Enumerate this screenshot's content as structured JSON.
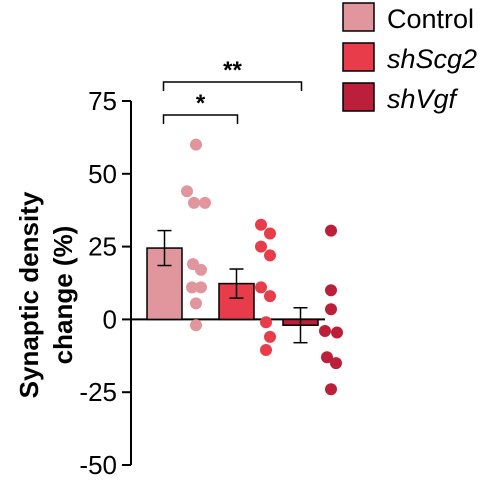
{
  "chart_data": {
    "type": "bar",
    "ylabel_line1": "Synaptic density",
    "ylabel_line2": "change (%)",
    "ylim": [
      -50,
      75
    ],
    "yticks": [
      75,
      50,
      25,
      0,
      -25,
      -50
    ],
    "ytick_labels": [
      "75",
      "50",
      "25",
      "0",
      "-25",
      "-50"
    ],
    "grid": false,
    "legend_position": "top-right",
    "series": [
      {
        "name": "Control",
        "italic": false,
        "mean": 24.5,
        "error": 6,
        "bar_color": "#e0969c",
        "point_color": "#e0969c",
        "points": [
          60,
          44,
          40,
          40,
          19,
          17,
          11,
          11,
          5.5,
          -2
        ]
      },
      {
        "name": "shScg2",
        "italic": true,
        "mean": 12.3,
        "error": 5,
        "bar_color": "#e83c4a",
        "point_color": "#e83c4a",
        "points": [
          32.5,
          29.5,
          25,
          22,
          11,
          8,
          -1,
          -6,
          -10.5
        ]
      },
      {
        "name": "shVgf",
        "italic": true,
        "mean": -2,
        "error": 6,
        "bar_color": "#bb1f39",
        "point_color": "#bb1f39",
        "points": [
          30.5,
          10,
          3.5,
          -4,
          -4.5,
          -13,
          -15,
          -24
        ]
      }
    ],
    "significance": [
      {
        "from": 0,
        "to": 1,
        "label": "*"
      },
      {
        "from": 0,
        "to": 2,
        "label": "**"
      }
    ]
  }
}
